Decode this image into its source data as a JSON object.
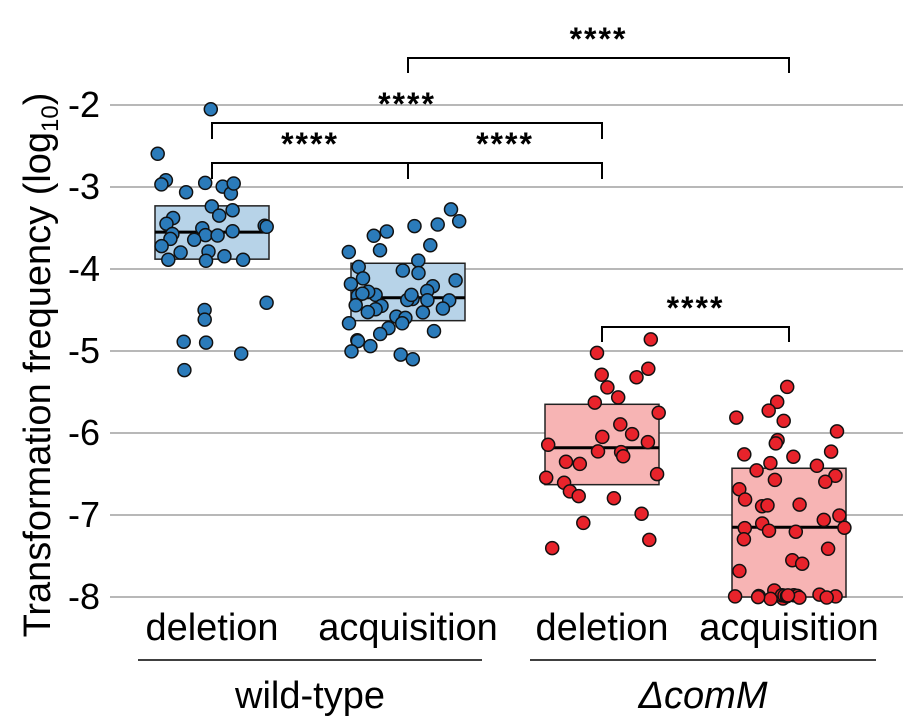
{
  "chart_data": {
    "type": "scatter",
    "ylabel_main": "Transformation frequency (log",
    "ylabel_sub": "10",
    "ylabel_close": ")",
    "ylim": [
      -8,
      -2
    ],
    "yticks": [
      -8,
      -7,
      -6,
      -5,
      -4,
      -3,
      -2
    ],
    "ytick_labels": [
      "-8",
      "-7",
      "-6",
      "-5",
      "-4",
      "-3",
      "-2"
    ],
    "grid": true,
    "categories": [
      "deletion",
      "acquisition",
      "deletion",
      "acquisition"
    ],
    "group_labels": [
      "wild-type",
      "ΔcomM"
    ],
    "colors": {
      "wt_point": "#2b7bba",
      "wt_box": "#b7d3e8",
      "mut_point": "#e8232b",
      "mut_box": "#f7b4b4"
    },
    "series": [
      {
        "category": "deletion",
        "group": "wild-type",
        "box": {
          "q1": -3.88,
          "median": -3.55,
          "q3": -3.23
        },
        "values": [
          -2.05,
          -2.93,
          -2.95,
          -2.95,
          -3.0,
          -3.05,
          -3.1,
          -3.25,
          -3.3,
          -3.35,
          -3.4,
          -3.45,
          -3.45,
          -3.5,
          -3.5,
          -3.55,
          -3.55,
          -3.6,
          -3.6,
          -3.62,
          -3.65,
          -3.7,
          -3.78,
          -3.8,
          -3.85,
          -3.88,
          -3.9,
          -3.92,
          -2.6,
          -2.95,
          -4.42,
          -4.5,
          -4.6,
          -4.9,
          -4.9,
          -5.05,
          -5.22
        ]
      },
      {
        "category": "acquisition",
        "group": "wild-type",
        "box": {
          "q1": -4.63,
          "median": -4.35,
          "q3": -3.93
        },
        "values": [
          -3.25,
          -3.4,
          -3.45,
          -3.5,
          -3.55,
          -3.6,
          -3.7,
          -3.75,
          -3.8,
          -3.9,
          -3.95,
          -4.0,
          -4.05,
          -4.1,
          -4.15,
          -4.2,
          -4.2,
          -4.25,
          -4.3,
          -4.3,
          -4.35,
          -4.35,
          -4.4,
          -4.4,
          -4.45,
          -4.45,
          -4.5,
          -4.5,
          -4.55,
          -4.55,
          -4.6,
          -4.6,
          -4.65,
          -4.65,
          -4.7,
          -4.75,
          -4.8,
          -4.85,
          -4.9,
          -4.95,
          -5.0,
          -5.05,
          -5.08,
          -4.32,
          -4.28,
          -4.38
        ]
      },
      {
        "category": "deletion",
        "group": "ΔcomM",
        "box": {
          "q1": -6.63,
          "median": -6.18,
          "q3": -5.65
        },
        "values": [
          -4.85,
          -5.0,
          -5.22,
          -5.28,
          -5.3,
          -5.42,
          -5.55,
          -5.65,
          -5.75,
          -5.9,
          -6.0,
          -6.05,
          -6.1,
          -6.15,
          -6.2,
          -6.25,
          -6.3,
          -6.35,
          -6.4,
          -6.5,
          -6.55,
          -6.6,
          -6.7,
          -6.75,
          -6.8,
          -7.0,
          -7.1,
          -7.3,
          -7.42
        ]
      },
      {
        "category": "acquisition",
        "group": "ΔcomM",
        "box": {
          "q1": -8.0,
          "median": -7.15,
          "q3": -6.43
        },
        "values": [
          -5.45,
          -5.62,
          -5.75,
          -5.8,
          -5.85,
          -6.0,
          -6.1,
          -6.15,
          -6.25,
          -6.25,
          -6.3,
          -6.38,
          -6.4,
          -6.45,
          -6.5,
          -6.55,
          -6.6,
          -6.7,
          -6.8,
          -6.85,
          -6.9,
          -6.9,
          -7.0,
          -7.05,
          -7.1,
          -7.15,
          -7.15,
          -7.2,
          -7.2,
          -7.3,
          -7.4,
          -7.55,
          -7.6,
          -7.7,
          -7.9,
          -7.95,
          -8.0,
          -8.0,
          -8.0,
          -8.0,
          -8.0,
          -8.0,
          -8.0,
          -8.0,
          -8.0,
          -8.0,
          -8.0,
          -8.0,
          -8.0,
          -8.0
        ]
      }
    ],
    "comparisons": [
      {
        "from": 1,
        "to": 3,
        "label": "****"
      },
      {
        "from": 0,
        "to": 2,
        "label": "****"
      },
      {
        "from": 0,
        "to": 1,
        "label": "****"
      },
      {
        "from": 1,
        "to": 2,
        "label": "****"
      },
      {
        "from": 2,
        "to": 3,
        "label": "****"
      }
    ]
  }
}
